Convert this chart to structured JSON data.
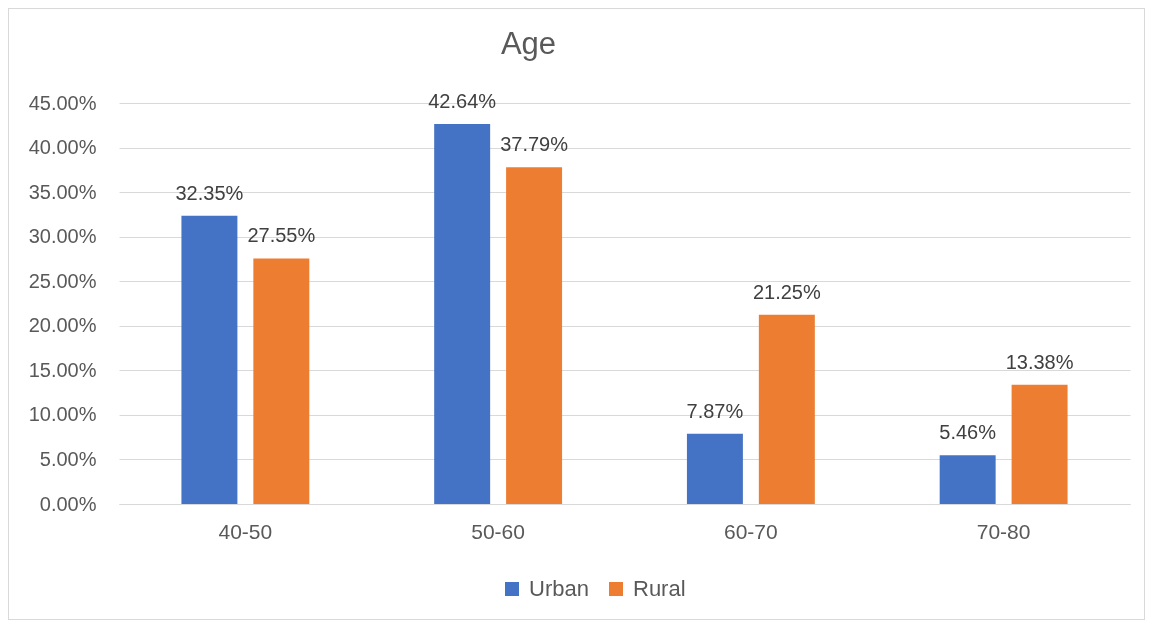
{
  "chart_data": {
    "type": "bar",
    "title": "Age",
    "categories": [
      "40-50",
      "50-60",
      "60-70",
      "70-80"
    ],
    "series": [
      {
        "name": "Urban",
        "color": "#4472c4",
        "values": [
          32.35,
          42.64,
          7.87,
          5.46
        ],
        "value_labels": [
          "32.35%",
          "42.64%",
          "7.87%",
          "5.46%"
        ]
      },
      {
        "name": "Rural",
        "color": "#ed7d31",
        "values": [
          27.55,
          37.79,
          21.25,
          13.38
        ],
        "value_labels": [
          "27.55%",
          "37.79%",
          "21.25%",
          "13.38%"
        ]
      }
    ],
    "ylim": [
      0,
      45
    ],
    "yticks": [
      {
        "value": 0,
        "label": "0.00%"
      },
      {
        "value": 5,
        "label": "5.00%"
      },
      {
        "value": 10,
        "label": "10.00%"
      },
      {
        "value": 15,
        "label": "15.00%"
      },
      {
        "value": 20,
        "label": "20.00%"
      },
      {
        "value": 25,
        "label": "25.00%"
      },
      {
        "value": 30,
        "label": "30.00%"
      },
      {
        "value": 35,
        "label": "35.00%"
      },
      {
        "value": 40,
        "label": "40.00%"
      },
      {
        "value": 45,
        "label": "45.00%"
      }
    ],
    "grid": "y",
    "legend": "bottom"
  }
}
